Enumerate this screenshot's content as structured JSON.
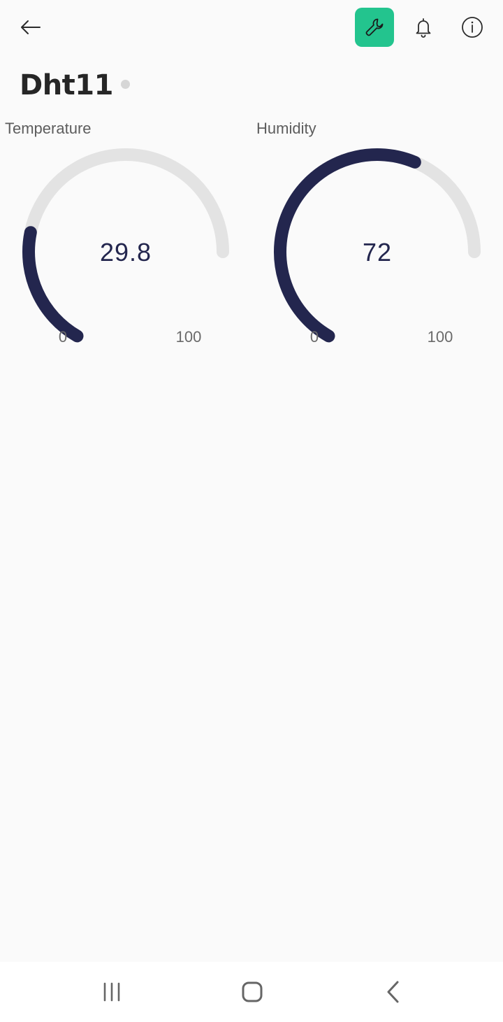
{
  "header": {
    "icons": {
      "back": "back-arrow-icon",
      "wrench": "wrench-icon",
      "bell": "bell-icon",
      "info": "info-icon"
    },
    "accent_color": "#23c48e"
  },
  "device": {
    "name": "Dht11",
    "status_color": "#d6d6d6"
  },
  "widgets": [
    {
      "label": "Temperature",
      "value": "29.8",
      "min": "0",
      "max": "100",
      "fill_fraction": 0.298,
      "color": "#23264e",
      "track_color": "#e3e3e3"
    },
    {
      "label": "Humidity",
      "value": "72",
      "min": "0",
      "max": "100",
      "fill_fraction": 0.72,
      "color": "#23264e",
      "track_color": "#e3e3e3"
    }
  ],
  "navbar": {
    "icons": {
      "recents": "recents-icon",
      "home": "home-icon",
      "back": "nav-back-icon"
    }
  }
}
